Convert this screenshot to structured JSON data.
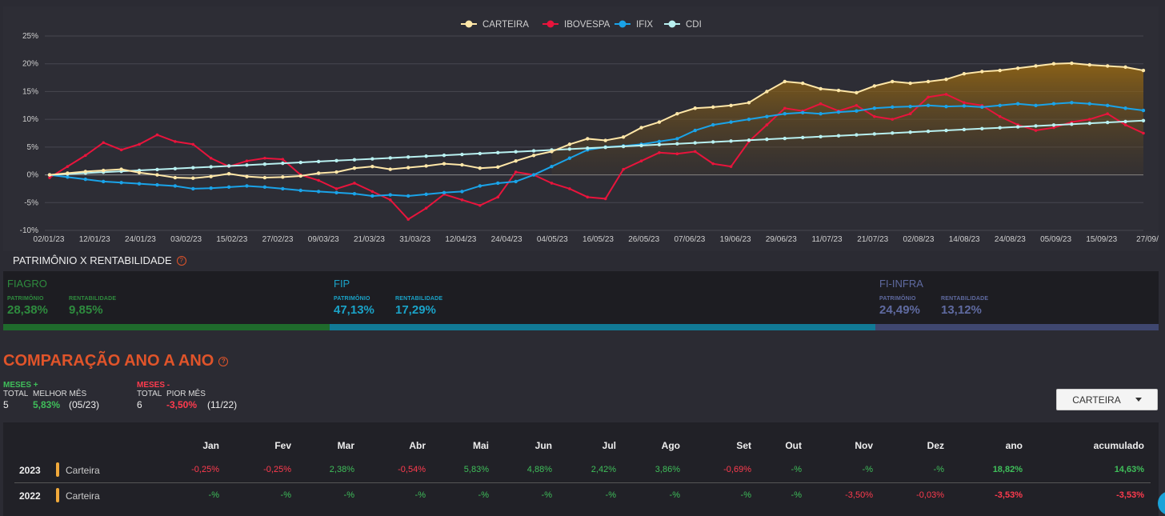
{
  "chart_data": {
    "type": "line",
    "title": "",
    "legend": [
      "CARTEIRA",
      "IBOVESPA",
      "IFIX",
      "CDI"
    ],
    "legend_position": "top-center",
    "colors": {
      "CARTEIRA": "#ffe7a8",
      "IBOVESPA": "#e8143c",
      "IFIX": "#1aa3e8",
      "CDI": "#b8f0f0"
    },
    "y_ticks": [
      "25%",
      "20%",
      "15%",
      "10%",
      "5%",
      "0%",
      "-5%",
      "-10%"
    ],
    "ylim": [
      -10,
      25
    ],
    "x_ticks": [
      "02/01/23",
      "12/01/23",
      "24/01/23",
      "03/02/23",
      "15/02/23",
      "27/02/23",
      "09/03/23",
      "21/03/23",
      "31/03/23",
      "12/04/23",
      "24/04/23",
      "04/05/23",
      "16/05/23",
      "26/05/23",
      "07/06/23",
      "19/06/23",
      "29/06/23",
      "11/07/23",
      "21/07/23",
      "02/08/23",
      "14/08/23",
      "24/08/23",
      "05/09/23",
      "15/09/23",
      "27/09/"
    ],
    "series": [
      {
        "name": "CARTEIRA",
        "values": [
          0,
          0.3,
          0.6,
          0.8,
          1.0,
          0.4,
          0.0,
          -0.5,
          -0.6,
          -0.3,
          0.2,
          -0.3,
          -0.5,
          -0.4,
          -0.2,
          0.3,
          0.5,
          1.2,
          1.5,
          1.0,
          1.3,
          1.6,
          2.0,
          1.8,
          1.2,
          1.4,
          2.5,
          3.5,
          4.2,
          5.5,
          6.5,
          6.2,
          6.8,
          8.5,
          9.5,
          11.0,
          12.0,
          12.2,
          12.5,
          13.0,
          15.0,
          16.8,
          16.5,
          15.5,
          15.2,
          14.8,
          16.0,
          16.8,
          16.5,
          16.8,
          17.2,
          18.2,
          18.6,
          18.8,
          19.2,
          19.6,
          20.0,
          20.1,
          19.8,
          19.6,
          19.4,
          18.8
        ]
      },
      {
        "name": "IBOVESPA",
        "values": [
          -0.5,
          1.5,
          3.5,
          5.8,
          4.5,
          5.5,
          7.2,
          6.0,
          5.5,
          3.0,
          1.5,
          2.5,
          3.0,
          2.8,
          0.0,
          -1.0,
          -2.5,
          -1.5,
          -3.0,
          -4.5,
          -8.0,
          -6.0,
          -3.5,
          -4.5,
          -5.5,
          -4.0,
          0.5,
          0.0,
          -1.5,
          -2.5,
          -4.0,
          -4.3,
          1.0,
          2.5,
          4.0,
          3.8,
          4.2,
          2.0,
          1.5,
          6.0,
          9.0,
          12.0,
          11.5,
          12.8,
          11.5,
          12.5,
          10.5,
          10.0,
          11.0,
          14.0,
          14.5,
          13.0,
          12.5,
          10.5,
          9.0,
          8.0,
          8.5,
          9.5,
          10.0,
          11.0,
          9.0,
          7.5
        ]
      },
      {
        "name": "IFIX",
        "values": [
          0,
          -0.4,
          -0.8,
          -1.2,
          -1.4,
          -1.6,
          -1.8,
          -2.0,
          -2.5,
          -2.4,
          -2.2,
          -2.0,
          -2.2,
          -2.5,
          -2.8,
          -3.0,
          -3.2,
          -3.4,
          -3.8,
          -3.6,
          -3.8,
          -3.5,
          -3.2,
          -3.0,
          -2.0,
          -1.5,
          -1.2,
          0.0,
          1.5,
          3.0,
          4.5,
          5.0,
          5.2,
          5.5,
          6.0,
          6.5,
          8.0,
          9.0,
          9.5,
          10.0,
          10.5,
          11.0,
          11.2,
          11.0,
          11.3,
          11.5,
          12.0,
          12.2,
          12.3,
          12.5,
          12.3,
          12.4,
          12.2,
          12.5,
          12.8,
          12.5,
          12.8,
          13.0,
          12.8,
          12.5,
          12.0,
          11.6
        ]
      },
      {
        "name": "CDI",
        "values": [
          0,
          0.16,
          0.32,
          0.48,
          0.64,
          0.8,
          0.96,
          1.12,
          1.28,
          1.44,
          1.6,
          1.76,
          1.92,
          2.08,
          2.24,
          2.4,
          2.56,
          2.72,
          2.88,
          3.04,
          3.2,
          3.36,
          3.52,
          3.68,
          3.84,
          4.0,
          4.16,
          4.32,
          4.48,
          4.64,
          4.8,
          4.96,
          5.12,
          5.28,
          5.44,
          5.6,
          5.76,
          5.92,
          6.08,
          6.24,
          6.4,
          6.56,
          6.72,
          6.88,
          7.04,
          7.2,
          7.36,
          7.52,
          7.68,
          7.84,
          8.0,
          8.16,
          8.32,
          8.48,
          8.64,
          8.8,
          8.96,
          9.12,
          9.28,
          9.44,
          9.6,
          9.76
        ]
      }
    ]
  },
  "patrimonio": {
    "title": "PATRIMÔNIO X RENTABILIDADE",
    "patrimonio_label": "PATRIMÔNIO",
    "rentabilidade_label": "RENTABILIDADE",
    "segments": [
      {
        "name": "FIAGRO",
        "patrimonio": "28,38%",
        "rentabilidade": "9,85%",
        "color": "#2e8b3e",
        "bar": "#1f6b2c",
        "share": 0.2838
      },
      {
        "name": "FIP",
        "patrimonio": "47,13%",
        "rentabilidade": "17,29%",
        "color": "#1aa3c8",
        "bar": "#117a96",
        "share": 0.4713
      },
      {
        "name": "FI-INFRA",
        "patrimonio": "24,49%",
        "rentabilidade": "13,12%",
        "color": "#5f6aa0",
        "bar": "#3f4770",
        "share": 0.2449
      }
    ]
  },
  "comparacao": {
    "title": "COMPARAÇÃO ANO A ANO",
    "meses_pos": {
      "title": "MESES +",
      "total_label": "TOTAL",
      "total": "5",
      "best_label": "MELHOR MÊS",
      "best_value": "5,83%",
      "best_date": "(05/23)"
    },
    "meses_neg": {
      "title": "MESES -",
      "total_label": "TOTAL",
      "total": "6",
      "worst_label": "PIOR MÊS",
      "worst_value": "-3,50%",
      "worst_date": "(11/22)"
    },
    "dropdown": "CARTEIRA",
    "columns": [
      "Jan",
      "Fev",
      "Mar",
      "Abr",
      "Mai",
      "Jun",
      "Jul",
      "Ago",
      "Set",
      "Out",
      "Nov",
      "Dez",
      "ano",
      "acumulado"
    ],
    "rows": [
      {
        "year": "2023",
        "name": "Carteira",
        "values": [
          "-0,25%",
          "-0,25%",
          "2,38%",
          "-0,54%",
          "5,83%",
          "4,88%",
          "2,42%",
          "3,86%",
          "-0,69%",
          "-%",
          "-%",
          "-%",
          "18,82%",
          "14,63%"
        ]
      },
      {
        "year": "2022",
        "name": "Carteira",
        "values": [
          "-%",
          "-%",
          "-%",
          "-%",
          "-%",
          "-%",
          "-%",
          "-%",
          "-%",
          "-%",
          "-3,50%",
          "-0,03%",
          "-3,53%",
          "-3,53%"
        ]
      }
    ]
  }
}
